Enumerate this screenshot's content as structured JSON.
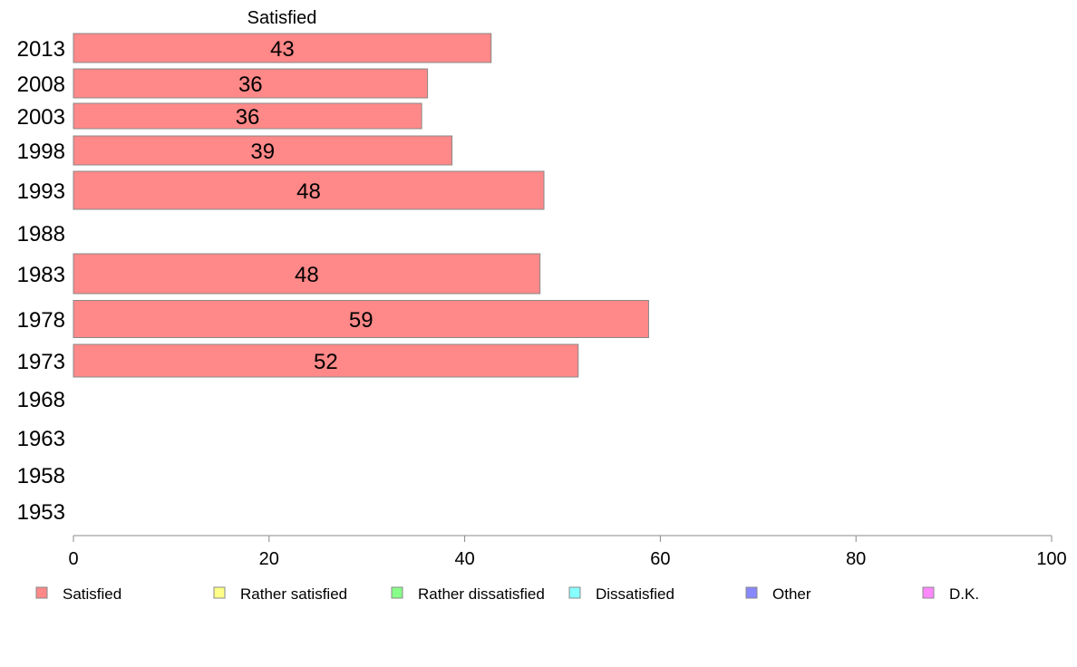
{
  "chart_data": {
    "type": "bar",
    "orientation": "horizontal",
    "stacked": true,
    "categories": [
      "2013",
      "2008",
      "2003",
      "1998",
      "1993",
      "1988",
      "1983",
      "1978",
      "1973",
      "1968",
      "1963",
      "1958",
      "1953"
    ],
    "series": [
      {
        "name": "Satisfied",
        "color": "#ff8888",
        "values": [
          42.7,
          36.2,
          35.6,
          38.7,
          48.1,
          null,
          47.7,
          58.8,
          51.6,
          null,
          null,
          null,
          null
        ],
        "labels": [
          "43",
          "36",
          "36",
          "39",
          "48",
          "",
          "48",
          "59",
          "52",
          "",
          "",
          "",
          ""
        ]
      },
      {
        "name": "Rather satisfied",
        "color": "#ffff88",
        "values": [
          null,
          null,
          null,
          null,
          null,
          null,
          null,
          null,
          null,
          null,
          null,
          null,
          null
        ]
      },
      {
        "name": "Rather dissatisfied",
        "color": "#88ff88",
        "values": [
          null,
          null,
          null,
          null,
          null,
          null,
          null,
          null,
          null,
          null,
          null,
          null,
          null
        ]
      },
      {
        "name": "Dissatisfied",
        "color": "#88ffff",
        "values": [
          null,
          null,
          null,
          null,
          null,
          null,
          null,
          null,
          null,
          null,
          null,
          null,
          null
        ]
      },
      {
        "name": "Other",
        "color": "#8888ff",
        "values": [
          null,
          null,
          null,
          null,
          null,
          null,
          null,
          null,
          null,
          null,
          null,
          null,
          null
        ]
      },
      {
        "name": "D.K.",
        "color": "#ff88ff",
        "values": [
          null,
          null,
          null,
          null,
          null,
          null,
          null,
          null,
          null,
          null,
          null,
          null,
          null
        ]
      }
    ],
    "series_title": "Satisfied",
    "xlim": [
      0,
      100
    ],
    "xticks": [
      "0",
      "20",
      "40",
      "60",
      "80",
      "100"
    ],
    "grid": false,
    "legend_position": "bottom"
  }
}
